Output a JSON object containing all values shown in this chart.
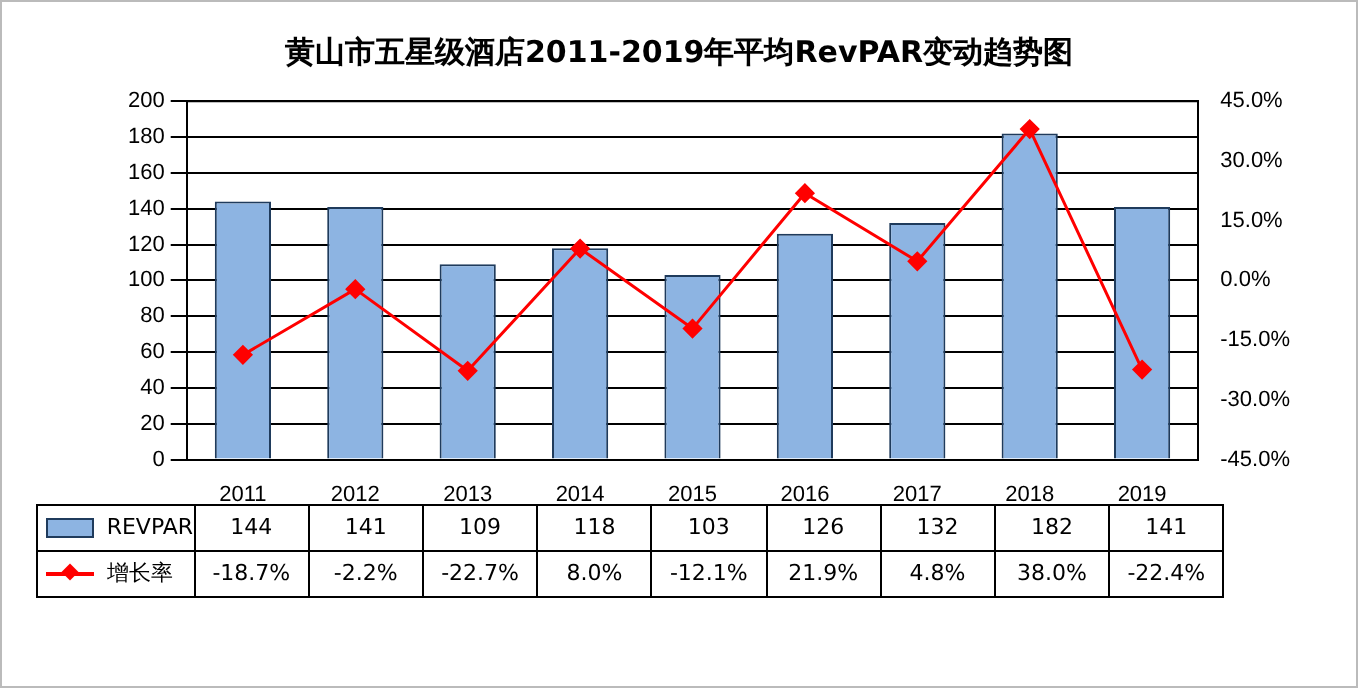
{
  "chart_data": {
    "type": "bar",
    "title": "黄山市五星级酒店2011-2019年平均RevPAR变动趋势图",
    "categories": [
      "2011",
      "2012",
      "2013",
      "2014",
      "2015",
      "2016",
      "2017",
      "2018",
      "2019"
    ],
    "series": [
      {
        "name": "REVPAR",
        "color": "#8db4e2",
        "values": [
          144,
          141,
          109,
          118,
          103,
          126,
          132,
          182,
          141
        ]
      },
      {
        "name": "增长率",
        "type": "line",
        "axis": "y2",
        "color": "#ff0000",
        "marker": "diamond",
        "values": [
          -18.7,
          -2.2,
          -22.7,
          8.0,
          -12.1,
          21.9,
          4.8,
          38.0,
          -22.4
        ],
        "value_labels": [
          "-18.7%",
          "-2.2%",
          "-22.7%",
          "8.0%",
          "-12.1%",
          "21.9%",
          "4.8%",
          "38.0%",
          "-22.4%"
        ]
      }
    ],
    "ylim": [
      0,
      200
    ],
    "yticks": [
      0,
      20,
      40,
      60,
      80,
      100,
      120,
      140,
      160,
      180,
      200
    ],
    "y2lim": [
      -45,
      45
    ],
    "y2ticks": [
      {
        "value": -45,
        "label": "-45.0%"
      },
      {
        "value": -30,
        "label": "-30.0%"
      },
      {
        "value": -15,
        "label": "-15.0%"
      },
      {
        "value": 0,
        "label": "0.0%"
      },
      {
        "value": 15,
        "label": "15.0%"
      },
      {
        "value": 30,
        "label": "30.0%"
      },
      {
        "value": 45,
        "label": "45.0%"
      }
    ],
    "grid": "y",
    "legend": "bottom",
    "data_labels": true
  }
}
